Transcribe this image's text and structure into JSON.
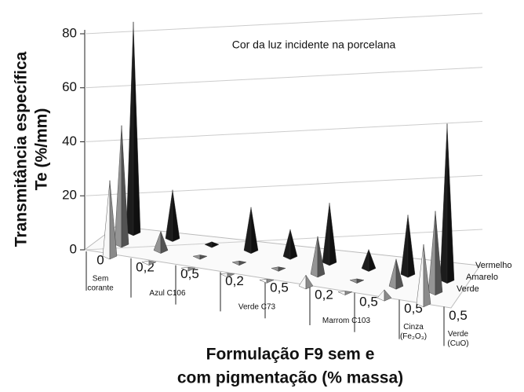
{
  "chart_data": {
    "type": "pyramid3d",
    "annotation": "Cor da luz incidente na porcelana",
    "y_label": [
      "Transmitância específica",
      "Te (%/mm)"
    ],
    "x_label": [
      "Formulação F9 sem e",
      "com pigmentação (% massa)"
    ],
    "categories": [
      "0",
      "0,2",
      "0,5",
      "0,2",
      "0,5",
      "0,2",
      "0,5",
      "0,5",
      "0,5"
    ],
    "groups": [
      [
        "Sem",
        "corante"
      ],
      [
        "Azul C106"
      ],
      [
        "Verde C73"
      ],
      [
        "Marrom C103"
      ],
      [
        "Cinza",
        "(Fe₂O₃)"
      ],
      [
        "Verde",
        "(CuO)"
      ]
    ],
    "series": [
      {
        "name": "Verde",
        "color": "#b8b8b8",
        "values": [
          28,
          0.5,
          0.3,
          0.3,
          0.3,
          4,
          0.3,
          3,
          22
        ]
      },
      {
        "name": "Amarelo",
        "color": "#6e6e6e",
        "values": [
          44,
          7,
          0.5,
          0.5,
          0.5,
          14,
          0.5,
          10,
          30
        ]
      },
      {
        "name": "Vermelho",
        "color": "#151515",
        "values": [
          78,
          18,
          1,
          16,
          10,
          22,
          7,
          22,
          58
        ]
      }
    ],
    "ylim": [
      0,
      80
    ],
    "yticks": [
      0,
      20,
      40,
      60,
      80
    ],
    "grid": true
  }
}
